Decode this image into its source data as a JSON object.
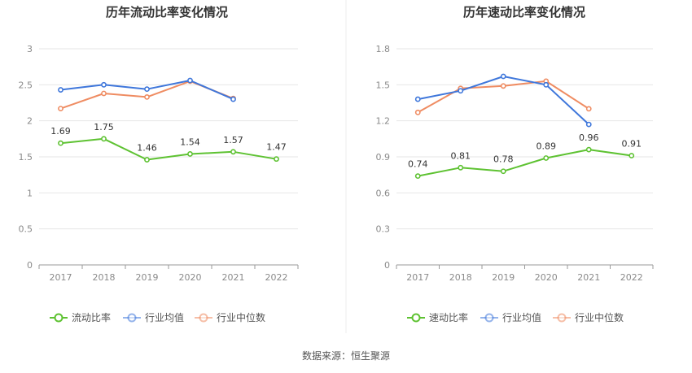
{
  "colors": {
    "current": "#5ec232",
    "avg": "#3f77db",
    "median": "#ef8c62",
    "grid": "#e6e6e6",
    "axis": "#9a9a9a",
    "divider": "#eeeeee"
  },
  "source": "数据来源：恒生聚源",
  "legend_labels": {
    "left": [
      "流动比率",
      "行业均值",
      "行业中位数"
    ],
    "right": [
      "速动比率",
      "行业均值",
      "行业中位数"
    ]
  },
  "chart_data": [
    {
      "type": "line",
      "title": "历年流动比率变化情况",
      "categories": [
        "2017",
        "2018",
        "2019",
        "2020",
        "2021",
        "2022"
      ],
      "ylim": [
        0,
        3
      ],
      "yticks": [
        "0",
        "0.5",
        "1",
        "1.5",
        "2",
        "2.5",
        "3"
      ],
      "grid": true,
      "legend": "bottom",
      "series": [
        {
          "name": "流动比率",
          "color_key": "current",
          "values": [
            1.69,
            1.75,
            1.46,
            1.54,
            1.57,
            1.47
          ],
          "labels": [
            "1.69",
            "1.75",
            "1.46",
            "1.54",
            "1.57",
            "1.47"
          ]
        },
        {
          "name": "行业均值",
          "color_key": "avg",
          "values": [
            2.43,
            2.5,
            2.44,
            2.56,
            2.3,
            null
          ]
        },
        {
          "name": "行业中位数",
          "color_key": "median",
          "values": [
            2.17,
            2.38,
            2.33,
            2.55,
            2.31,
            null
          ]
        }
      ]
    },
    {
      "type": "line",
      "title": "历年速动比率变化情况",
      "categories": [
        "2017",
        "2018",
        "2019",
        "2020",
        "2021",
        "2022"
      ],
      "ylim": [
        0,
        1.8
      ],
      "yticks": [
        "0",
        "0.3",
        "0.6",
        "0.9",
        "1.2",
        "1.5",
        "1.8"
      ],
      "grid": true,
      "legend": "bottom",
      "series": [
        {
          "name": "速动比率",
          "color_key": "current",
          "values": [
            0.74,
            0.81,
            0.78,
            0.89,
            0.96,
            0.91
          ],
          "labels": [
            "0.74",
            "0.81",
            "0.78",
            "0.89",
            "0.96",
            "0.91"
          ]
        },
        {
          "name": "行业均值",
          "color_key": "avg",
          "values": [
            1.38,
            1.45,
            1.57,
            1.5,
            1.17,
            null
          ]
        },
        {
          "name": "行业中位数",
          "color_key": "median",
          "values": [
            1.27,
            1.47,
            1.49,
            1.53,
            1.3,
            null
          ]
        }
      ]
    }
  ]
}
